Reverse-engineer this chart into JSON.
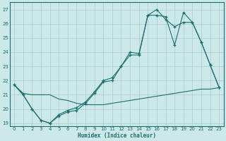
{
  "xlabel": "Humidex (Indice chaleur)",
  "bg_color": "#cce8e8",
  "grid_color": "#aacccc",
  "line_color": "#1a7070",
  "ylim": [
    18.8,
    27.5
  ],
  "xlim": [
    -0.5,
    23.5
  ],
  "yticks": [
    19,
    20,
    21,
    22,
    23,
    24,
    25,
    26,
    27
  ],
  "xticks": [
    0,
    1,
    2,
    3,
    4,
    5,
    6,
    7,
    8,
    9,
    10,
    11,
    12,
    13,
    14,
    15,
    16,
    17,
    18,
    19,
    20,
    21,
    22,
    23
  ],
  "series1_x": [
    0,
    1,
    2,
    3,
    4,
    5,
    6,
    7,
    8,
    9,
    10,
    11,
    12,
    13,
    14,
    15,
    16,
    17,
    18,
    19,
    20,
    21,
    22,
    23
  ],
  "series1_y": [
    21.7,
    21.0,
    20.0,
    19.2,
    19.0,
    19.5,
    19.8,
    19.9,
    20.4,
    21.1,
    21.9,
    22.0,
    23.0,
    23.8,
    23.8,
    26.6,
    27.0,
    26.3,
    25.8,
    26.1,
    26.1,
    24.7,
    23.1,
    21.5
  ],
  "series2_x": [
    0,
    1,
    2,
    3,
    4,
    5,
    6,
    7,
    8,
    9,
    10,
    11,
    12,
    13,
    14,
    15,
    16,
    17,
    18,
    19,
    20,
    21,
    22,
    23
  ],
  "series2_y": [
    21.7,
    21.0,
    20.0,
    19.2,
    19.0,
    19.6,
    19.9,
    20.1,
    20.5,
    21.2,
    22.0,
    22.2,
    23.0,
    24.0,
    23.9,
    26.6,
    26.6,
    26.5,
    24.5,
    26.8,
    26.1,
    24.7,
    23.1,
    21.5
  ],
  "series3_x": [
    0,
    1,
    2,
    3,
    4,
    5,
    6,
    7,
    8,
    9,
    10,
    11,
    12,
    13,
    14,
    15,
    16,
    17,
    18,
    19,
    20,
    21,
    22,
    23
  ],
  "series3_y": [
    21.7,
    21.1,
    21.0,
    21.0,
    21.0,
    20.7,
    20.6,
    20.4,
    20.3,
    20.3,
    20.3,
    20.4,
    20.5,
    20.6,
    20.7,
    20.8,
    20.9,
    21.0,
    21.1,
    21.2,
    21.3,
    21.4,
    21.4,
    21.5
  ]
}
